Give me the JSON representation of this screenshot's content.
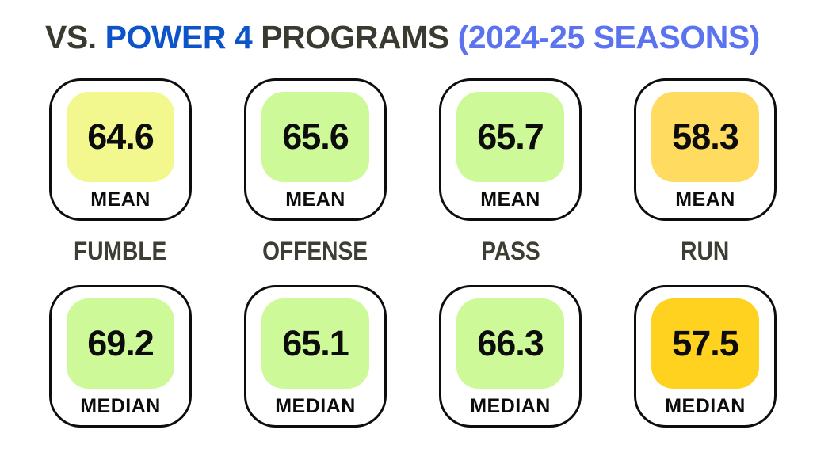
{
  "title": {
    "part_vs": "VS.",
    "part_power4": "POWER 4",
    "part_programs": "PROGRAMS",
    "part_season": "(2024-25 SEASONS)"
  },
  "colors": {
    "title_dark": "#3a3a31",
    "title_blue": "#0d54c9",
    "title_light_blue": "#5b73ee",
    "category_label": "#3d3d33",
    "fill_yellow_green": "#f2f88e",
    "fill_green": "#cdf998",
    "fill_amber": "#ffdb60",
    "fill_gold": "#ffd21f"
  },
  "columns": [
    {
      "label": "FUMBLE",
      "mean": {
        "value": "64.6",
        "stat_label": "MEAN",
        "fill": "#f2f88e"
      },
      "median": {
        "value": "69.2",
        "stat_label": "MEDIAN",
        "fill": "#cdf998"
      }
    },
    {
      "label": "OFFENSE",
      "mean": {
        "value": "65.6",
        "stat_label": "MEAN",
        "fill": "#cdf998"
      },
      "median": {
        "value": "65.1",
        "stat_label": "MEDIAN",
        "fill": "#cdf998"
      }
    },
    {
      "label": "PASS",
      "mean": {
        "value": "65.7",
        "stat_label": "MEAN",
        "fill": "#cdf998"
      },
      "median": {
        "value": "66.3",
        "stat_label": "MEDIAN",
        "fill": "#cdf998"
      }
    },
    {
      "label": "RUN",
      "mean": {
        "value": "58.3",
        "stat_label": "MEAN",
        "fill": "#ffdb60"
      },
      "median": {
        "value": "57.5",
        "stat_label": "MEDIAN",
        "fill": "#ffd21f"
      }
    }
  ],
  "chart_data": {
    "type": "table",
    "title": "VS. POWER 4 PROGRAMS (2024-25 SEASONS)",
    "categories": [
      "FUMBLE",
      "OFFENSE",
      "PASS",
      "RUN"
    ],
    "series": [
      {
        "name": "MEAN",
        "values": [
          64.6,
          65.6,
          65.7,
          58.3
        ]
      },
      {
        "name": "MEDIAN",
        "values": [
          69.2,
          65.1,
          66.3,
          57.5
        ]
      }
    ],
    "layout": "Each category has a MEAN card (top row) and MEDIAN card (bottom row); cell shading: higher values green/yellow-green, lower values amber/gold"
  }
}
